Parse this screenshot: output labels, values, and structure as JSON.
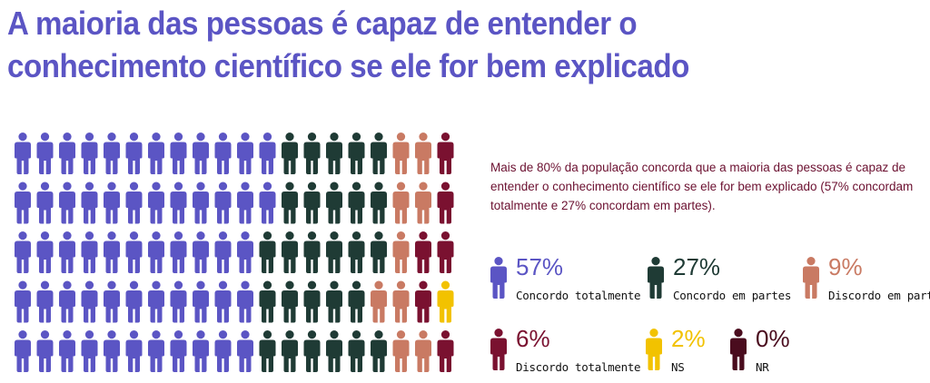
{
  "title": "A maioria das pessoas é capaz de entender o conhecimento científico se ele for bem explicado",
  "description": "Mais de 80% da população concorda que a maioria das pessoas é capaz de entender o conhecimento científico se ele for bem explicado (57% concordam totalmente e 27% concordam em partes).",
  "colors": {
    "concordo_totalmente": "#5b55c4",
    "concordo_em_partes": "#1f3b35",
    "discordo_em_partes": "#c97a63",
    "discordo_totalmente": "#7a1130",
    "ns": "#f2c200",
    "nr": "#4a0c1e"
  },
  "chart_data": {
    "type": "pictogram",
    "total_icons": 100,
    "categories": [
      "Concordo totalmente",
      "Concordo em partes",
      "Discordo em partes",
      "Discordo totalmente",
      "NS",
      "NR"
    ],
    "values": [
      57,
      27,
      9,
      6,
      2,
      0
    ],
    "unit": "%",
    "legend": [
      {
        "label": "Concordo totalmente",
        "pct": "57%",
        "color": "#5b55c4"
      },
      {
        "label": "Concordo em partes",
        "pct": "27%",
        "color": "#1f3b35"
      },
      {
        "label": "Discordo em partes",
        "pct": "9%",
        "color": "#c97a63"
      },
      {
        "label": "Discordo totalmente",
        "pct": "6%",
        "color": "#7a1130"
      },
      {
        "label": "NS",
        "pct": "2%",
        "color": "#f2c200"
      },
      {
        "label": "NR",
        "pct": "0%",
        "color": "#4a0c1e"
      }
    ]
  }
}
